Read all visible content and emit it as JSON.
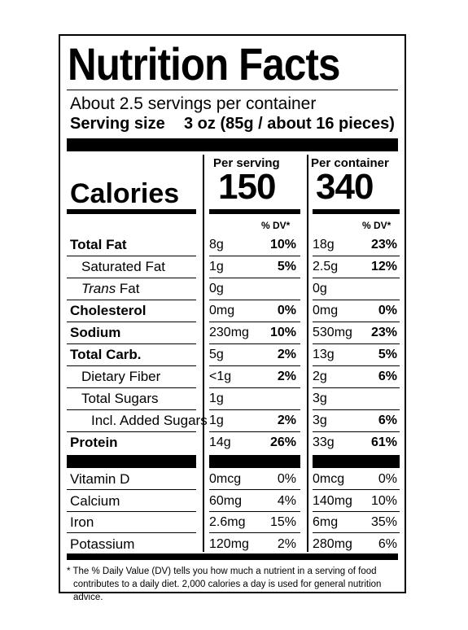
{
  "title": "Nutrition Facts",
  "servings_per_container": "About 2.5 servings per container",
  "serving_size_label": "Serving size",
  "serving_size_amount": "3 oz (85g / about 16 pieces)",
  "calories_label": "Calories",
  "per_serving_header": "Per serving",
  "per_container_header": "Per container",
  "calories_per_serving": "150",
  "calories_per_container": "340",
  "dv_header": "% DV*",
  "nutrients": [
    {
      "name": "Total Fat",
      "bold": true,
      "indent": 0,
      "serving_amount": "8g",
      "serving_dv": "10%",
      "container_amount": "18g",
      "container_dv": "23%"
    },
    {
      "name": "Saturated Fat",
      "bold": false,
      "indent": 1,
      "serving_amount": "1g",
      "serving_dv": "5%",
      "container_amount": "2.5g",
      "container_dv": "12%"
    },
    {
      "name": "Trans Fat",
      "bold": false,
      "indent": 1,
      "serving_amount": "0g",
      "serving_dv": "",
      "container_amount": "0g",
      "container_dv": ""
    },
    {
      "name": "Cholesterol",
      "bold": true,
      "indent": 0,
      "serving_amount": "0mg",
      "serving_dv": "0%",
      "container_amount": "0mg",
      "container_dv": "0%"
    },
    {
      "name": "Sodium",
      "bold": true,
      "indent": 0,
      "serving_amount": "230mg",
      "serving_dv": "10%",
      "container_amount": "530mg",
      "container_dv": "23%"
    },
    {
      "name": "Total Carb.",
      "bold": true,
      "indent": 0,
      "serving_amount": "5g",
      "serving_dv": "2%",
      "container_amount": "13g",
      "container_dv": "5%"
    },
    {
      "name": "Dietary Fiber",
      "bold": false,
      "indent": 1,
      "serving_amount": "<1g",
      "serving_dv": "2%",
      "container_amount": "2g",
      "container_dv": "6%"
    },
    {
      "name": "Total Sugars",
      "bold": false,
      "indent": 1,
      "serving_amount": "1g",
      "serving_dv": "",
      "container_amount": "3g",
      "container_dv": ""
    },
    {
      "name": "Incl. Added Sugars",
      "bold": false,
      "indent": 2,
      "serving_amount": "1g",
      "serving_dv": "2%",
      "container_amount": "3g",
      "container_dv": "6%"
    },
    {
      "name": "Protein",
      "bold": true,
      "indent": 0,
      "serving_amount": "14g",
      "serving_dv": "26%",
      "container_amount": "33g",
      "container_dv": "61%"
    }
  ],
  "vitamins": [
    {
      "name": "Vitamin D",
      "serving_amount": "0mcg",
      "serving_dv": "0%",
      "container_amount": "0mcg",
      "container_dv": "0%"
    },
    {
      "name": "Calcium",
      "serving_amount": "60mg",
      "serving_dv": "4%",
      "container_amount": "140mg",
      "container_dv": "10%"
    },
    {
      "name": "Iron",
      "serving_amount": "2.6mg",
      "serving_dv": "15%",
      "container_amount": "6mg",
      "container_dv": "35%"
    },
    {
      "name": "Potassium",
      "serving_amount": "120mg",
      "serving_dv": "2%",
      "container_amount": "280mg",
      "container_dv": "6%"
    }
  ],
  "footnote_line1": "* The % Daily Value (DV) tells you how much a nutrient in a serving of food",
  "footnote_line2": "contributes to a daily diet. 2,000 calories a day is used for general nutrition advice."
}
